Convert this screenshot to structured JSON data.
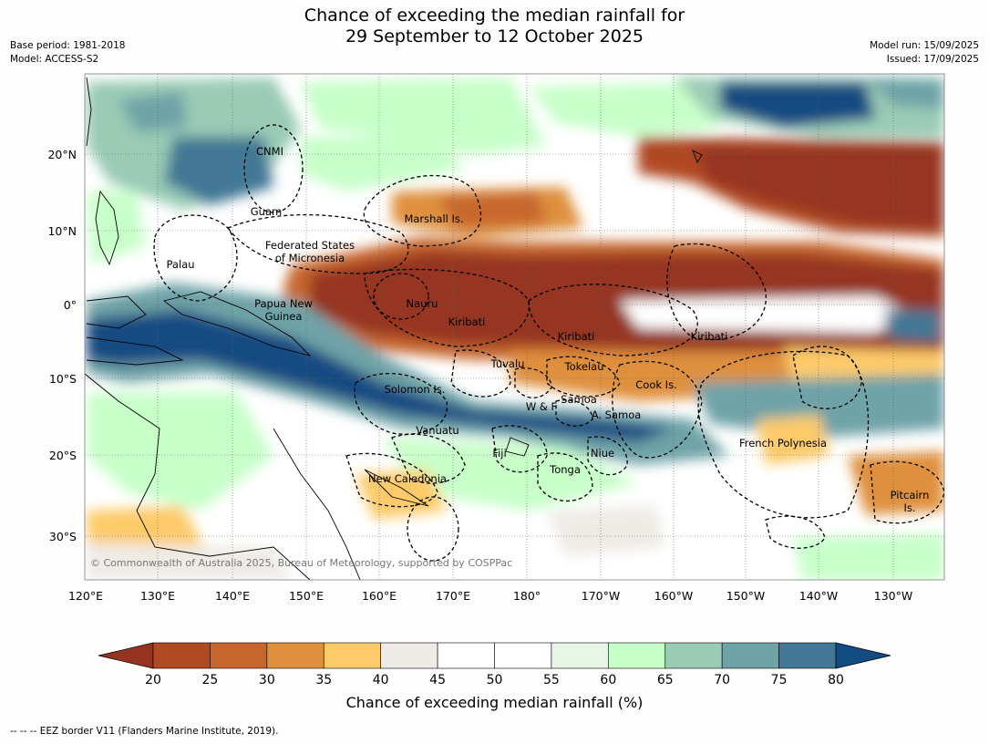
{
  "header": {
    "title_line1": "Chance of exceeding the median rainfall for",
    "title_line2": "29 September to 12 October 2025",
    "base_period": "Base period: 1981-2018",
    "model": "Model: ACCESS-S2",
    "model_run": "Model run: 15/09/2025",
    "issued": "Issued: 17/09/2025"
  },
  "map": {
    "lon_labels": [
      "120°E",
      "130°E",
      "140°E",
      "150°E",
      "160°E",
      "170°E",
      "180°",
      "170°W",
      "160°W",
      "150°W",
      "140°W",
      "130°W"
    ],
    "lat_labels": [
      "20°N",
      "10°N",
      "0°",
      "10°S",
      "20°S",
      "30°S"
    ],
    "regions": [
      "CNMI",
      "Guam",
      "Marshall Is.",
      "Palau",
      "Federated States",
      "of Micronesia",
      "Papua New",
      "Guinea",
      "Nauru",
      "Kiribati",
      "Kiribati",
      "Kiribati",
      "Tuvalu",
      "Tokelau",
      "Cook Is.",
      "Solomon Is.",
      "Samoa",
      "W & F",
      "A. Samoa",
      "Vanuatu",
      "Fiji",
      "Niue",
      "Tonga",
      "French Polynesia",
      "New Caledonia",
      "Pitcairn",
      "Is."
    ],
    "copyright": "© Commonwealth of Australia 2025, Bureau of Meteorology, supported by COSPPac"
  },
  "colorbar": {
    "ticks": [
      "20",
      "25",
      "30",
      "35",
      "40",
      "45",
      "50",
      "55",
      "60",
      "65",
      "70",
      "75",
      "80"
    ],
    "colors": [
      "#b04a22",
      "#c7672e",
      "#df903d",
      "#fdca6a",
      "#eeebe6",
      "#ffffff",
      "#ffffff",
      "#e6f5e6",
      "#c7ffc9",
      "#99cbb5",
      "#6ea3a7",
      "#427895"
    ],
    "low_color": "#953420",
    "high_color": "#124c82",
    "label": "Chance of exceeding median rainfall (%)"
  },
  "footer": {
    "eez_note": "--  --  -- EEZ border V11 (Flanders Marine Institute, 2019)."
  }
}
